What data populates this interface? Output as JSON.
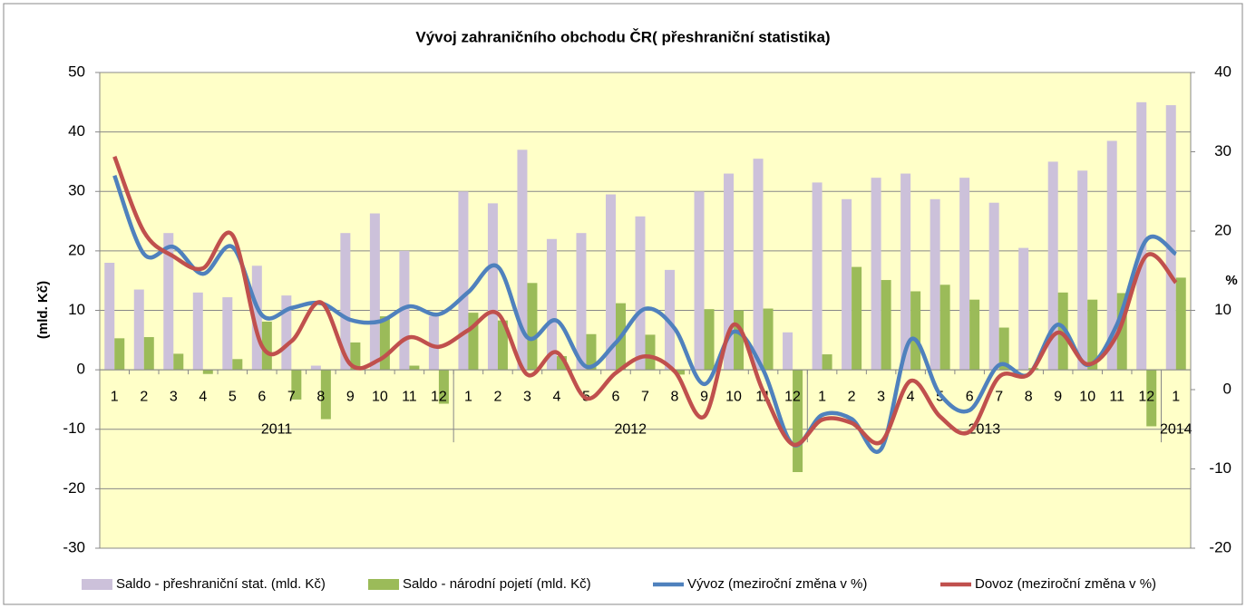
{
  "chart_data": {
    "type": "bar-line",
    "title": "Vývoj zahraničního obchodu ČR( přeshraniční statistika)",
    "y_label": "(mld. Kč)",
    "y2_label": "%",
    "groups": [
      {
        "label": "2011",
        "categories": [
          "1",
          "2",
          "3",
          "4",
          "5",
          "6",
          "7",
          "8",
          "9",
          "10",
          "11",
          "12"
        ]
      },
      {
        "label": "2012",
        "categories": [
          "1",
          "2",
          "3",
          "4",
          "5",
          "6",
          "7",
          "8",
          "9",
          "10",
          "11",
          "12"
        ]
      },
      {
        "label": "2013",
        "categories": [
          "1",
          "2",
          "3",
          "4",
          "5",
          "6",
          "7",
          "8",
          "9",
          "10",
          "11",
          "12"
        ]
      },
      {
        "label": "2014",
        "categories": [
          "1"
        ]
      }
    ],
    "ylim": [
      -30,
      50
    ],
    "yticks": [
      -30,
      -20,
      -10,
      0,
      10,
      20,
      30,
      40,
      50
    ],
    "y2lim": [
      -20,
      40
    ],
    "y2ticks": [
      -20,
      -10,
      0,
      10,
      20,
      30,
      40
    ],
    "grid": true,
    "legend": "bottom",
    "series": [
      {
        "name": "Saldo - přeshraniční stat. (mld. Kč)",
        "kind": "bar",
        "color": "#ccc1da",
        "values": [
          18,
          13.5,
          23,
          13,
          12.2,
          17.5,
          12.5,
          0.7,
          23,
          26.3,
          20,
          9,
          30,
          28,
          37,
          22,
          23,
          29.5,
          25.8,
          16.8,
          30,
          33,
          35.5,
          6.3,
          31.5,
          28.7,
          32.3,
          33,
          28.7,
          32.3,
          28.1,
          20.5,
          35,
          33.5,
          38.5,
          45,
          44.5
        ]
      },
      {
        "name": "Saldo - národní pojetí (mld. Kč)",
        "kind": "bar",
        "color": "#9bbb59",
        "values": [
          5.3,
          5.5,
          2.7,
          -0.7,
          1.8,
          8.1,
          -5,
          -8.3,
          4.6,
          9,
          0.7,
          -5.7,
          9.6,
          8.3,
          14.6,
          2.3,
          6,
          11.2,
          5.9,
          -0.8,
          10.2,
          10,
          10.3,
          -17.2,
          2.6,
          17.3,
          15.1,
          13.2,
          14.3,
          11.8,
          7.1,
          0.3,
          13,
          11.8,
          12.9,
          -9.5,
          15.5
        ]
      },
      {
        "name": "Vývoz (meziroční změna v %)",
        "kind": "line",
        "axis": "y2",
        "color": "#4f81bd",
        "values": [
          27,
          17.1,
          18,
          14.6,
          18,
          9.4,
          10.3,
          10.9,
          8.8,
          8.6,
          10.5,
          9.5,
          12.3,
          15.5,
          6.6,
          8.7,
          2.9,
          5.9,
          10.2,
          7.7,
          0.7,
          7.3,
          2.5,
          -6.9,
          -3.2,
          -3.7,
          -7.5,
          6.3,
          -0.6,
          -2.6,
          3.1,
          1.9,
          8.2,
          3.1,
          8.2,
          18.9,
          17.1
        ]
      },
      {
        "name": "Dovoz (meziroční změna v %)",
        "kind": "line",
        "axis": "y2",
        "color": "#c0504d",
        "values": [
          29.4,
          19.9,
          16.8,
          15.3,
          19.5,
          5.5,
          6.1,
          11,
          3.2,
          3.8,
          6.6,
          5.4,
          7.5,
          9.6,
          1.9,
          4.7,
          -1.1,
          2.1,
          4.2,
          2.3,
          -3.4,
          8.2,
          -0.2,
          -6.9,
          -3.8,
          -4.2,
          -6.6,
          1.1,
          -3.4,
          -5.3,
          1.6,
          1.9,
          7.2,
          3.2,
          6.9,
          16.9,
          13.5
        ]
      }
    ]
  }
}
